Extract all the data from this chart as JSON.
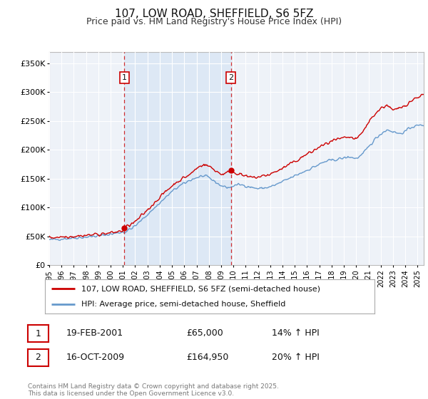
{
  "title": "107, LOW ROAD, SHEFFIELD, S6 5FZ",
  "subtitle": "Price paid vs. HM Land Registry's House Price Index (HPI)",
  "legend_line1": "107, LOW ROAD, SHEFFIELD, S6 5FZ (semi-detached house)",
  "legend_line2": "HPI: Average price, semi-detached house, Sheffield",
  "annotation1_label": "1",
  "annotation1_date": "19-FEB-2001",
  "annotation1_price": "£65,000",
  "annotation1_hpi": "14% ↑ HPI",
  "annotation1_year": 2001.12,
  "annotation2_label": "2",
  "annotation2_date": "16-OCT-2009",
  "annotation2_price": "£164,950",
  "annotation2_hpi": "20% ↑ HPI",
  "annotation2_year": 2009.79,
  "sale1_val": 65000,
  "sale2_val": 164950,
  "footer": "Contains HM Land Registry data © Crown copyright and database right 2025.\nThis data is licensed under the Open Government Licence v3.0.",
  "sale_color": "#cc0000",
  "hpi_color": "#6699cc",
  "vline_color": "#cc0000",
  "shade_color": "#dde8f5",
  "background_color": "#ffffff",
  "plot_bg_color": "#eef2f8",
  "grid_color": "#ffffff",
  "ylim_max": 370000,
  "xlim_min": 1995,
  "xlim_max": 2025.5
}
